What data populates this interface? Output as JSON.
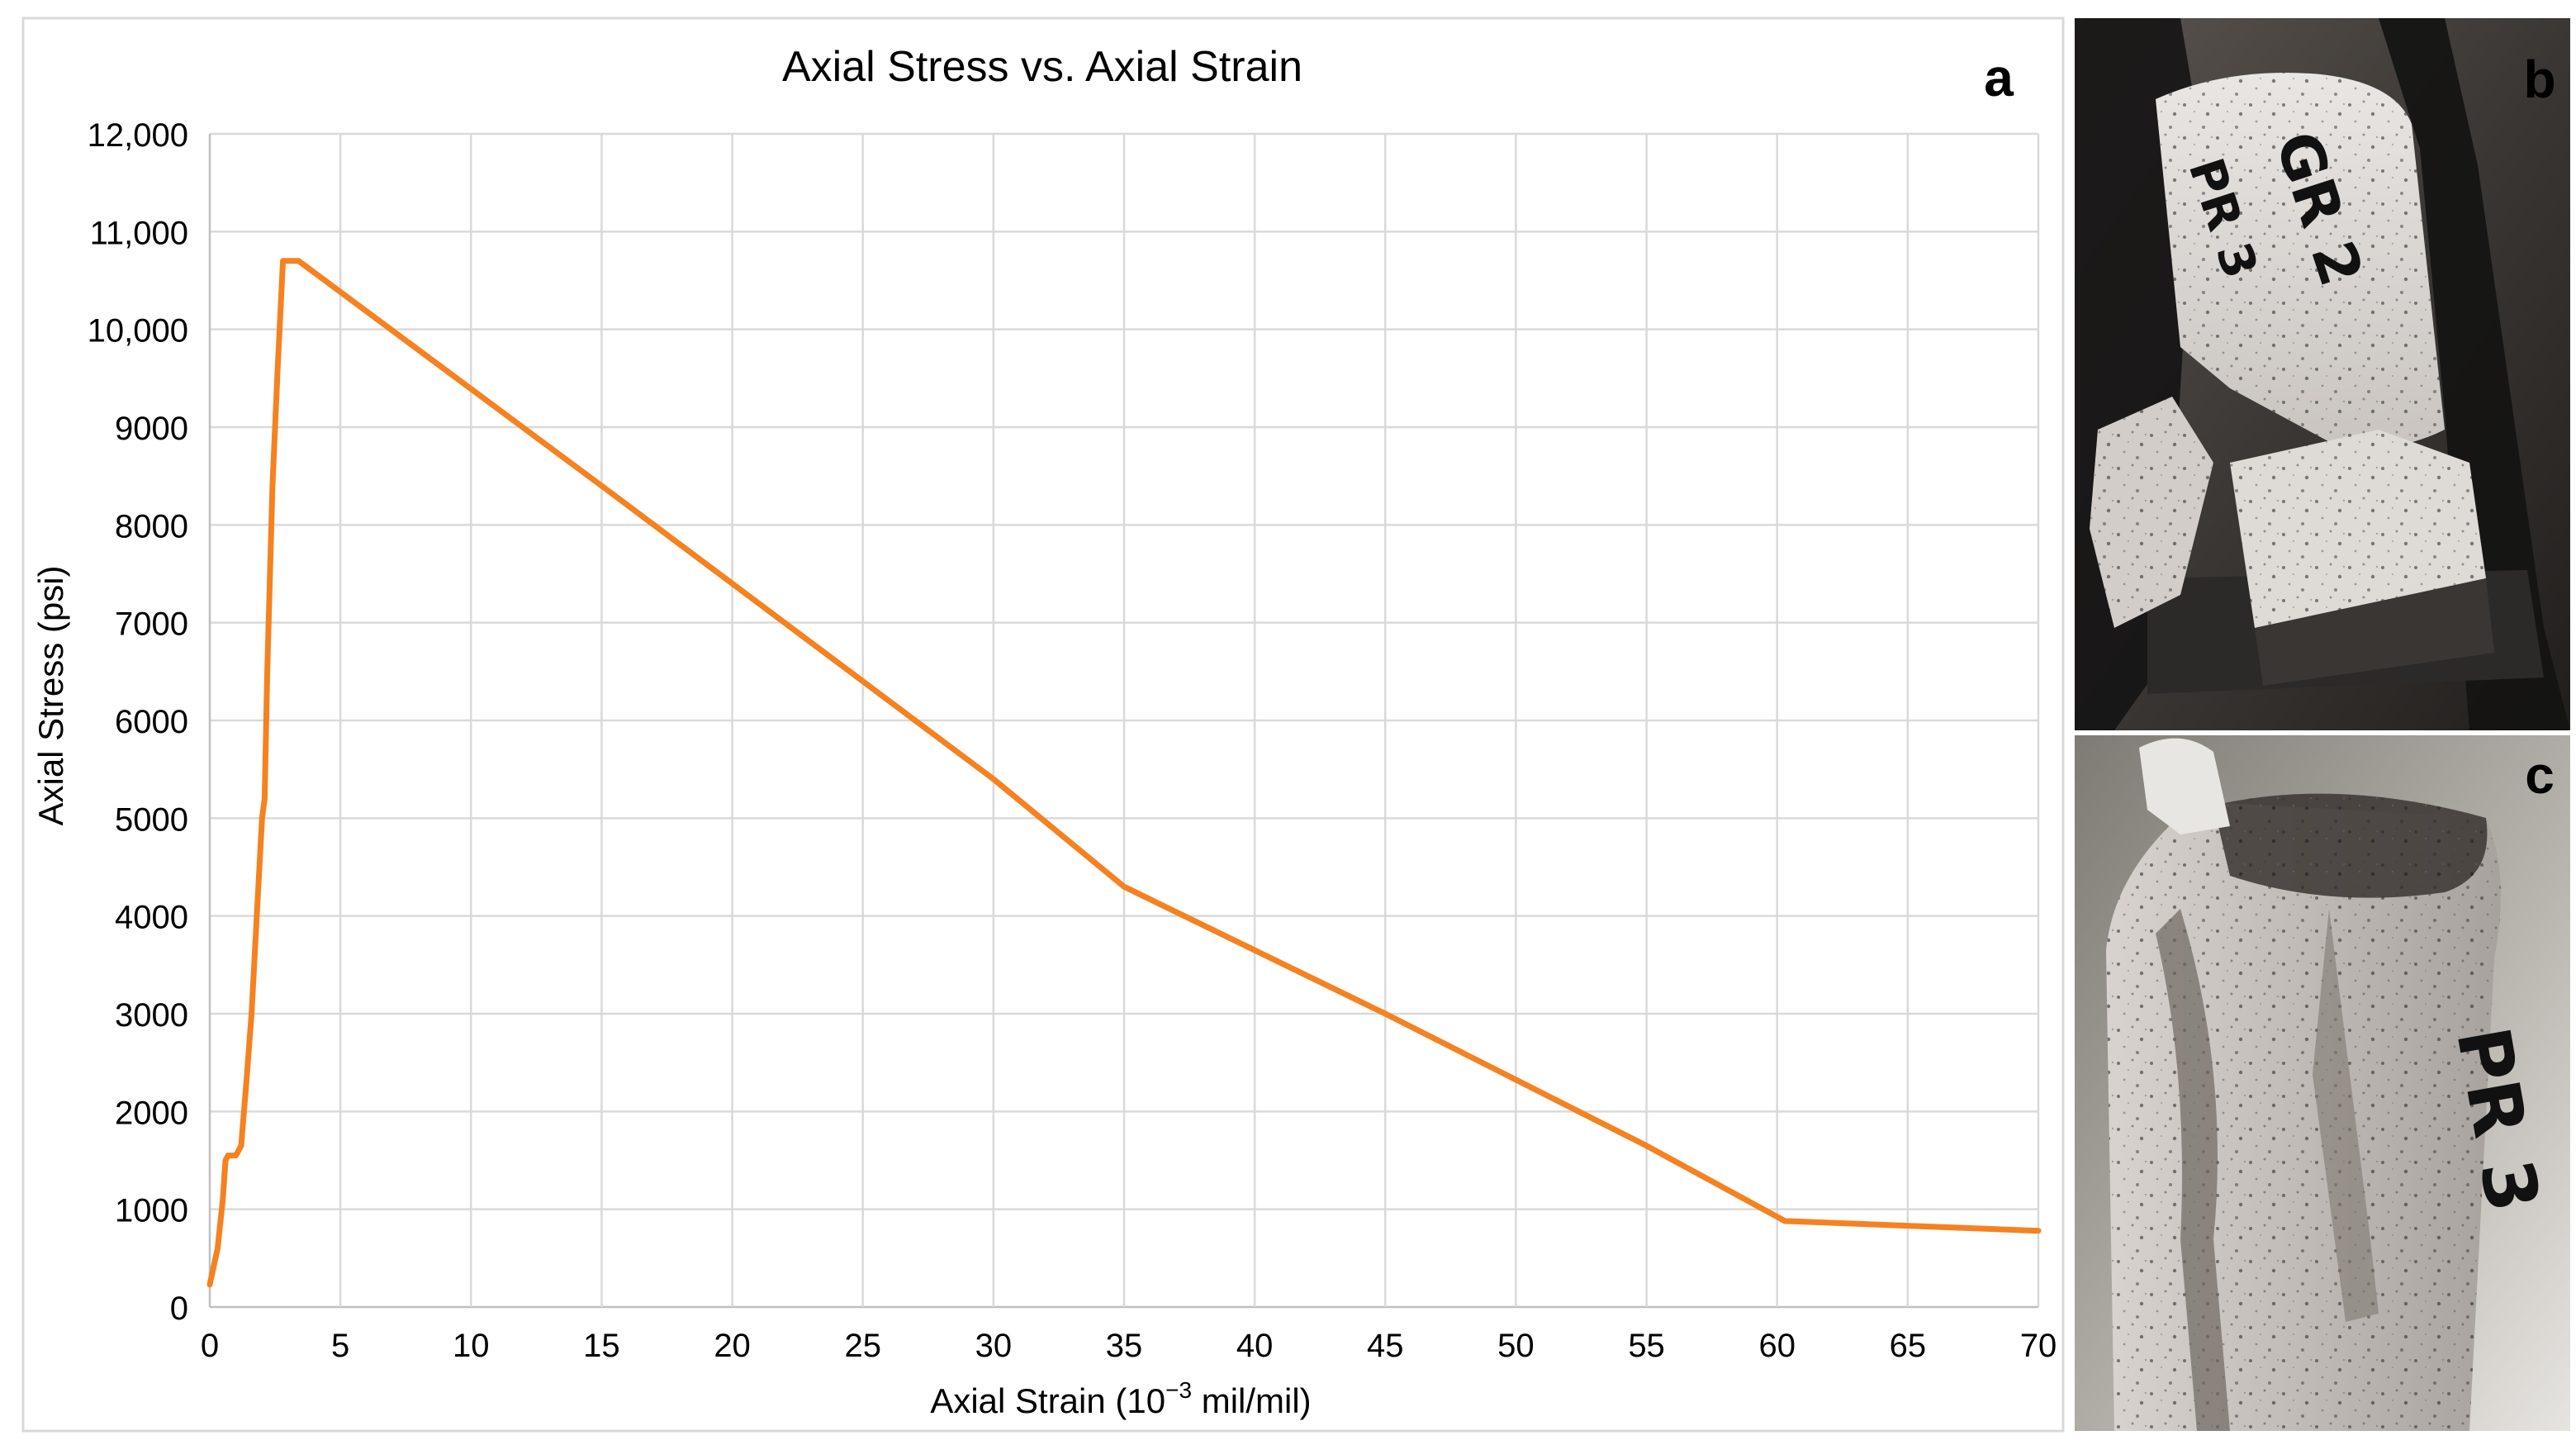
{
  "chart_data": {
    "type": "line",
    "title": "Axial Stress vs. Axial Strain",
    "xlabel": "Axial Strain (10",
    "xlabel_exp": "−3",
    "xlabel_tail": " mil/mil)",
    "ylabel": "Axial Stress (psi)",
    "xlim": [
      0,
      70
    ],
    "ylim": [
      0,
      12000
    ],
    "x_ticks": [
      "0",
      "5",
      "10",
      "15",
      "20",
      "25",
      "30",
      "35",
      "40",
      "45",
      "50",
      "55",
      "60",
      "65",
      "70"
    ],
    "y_ticks": [
      "0",
      "1000",
      "2000",
      "3000",
      "4000",
      "5000",
      "6000",
      "7000",
      "8000",
      "9000",
      "10,000",
      "11,000",
      "12,000"
    ],
    "grid": true,
    "series": [
      {
        "color": "#F58220",
        "x": [
          0.0,
          0.3,
          0.5,
          0.6,
          0.7,
          1.0,
          1.2,
          1.4,
          1.6,
          1.8,
          2.0,
          2.1,
          2.2,
          2.4,
          2.6,
          2.8,
          3.0,
          3.4,
          15.0,
          30.0,
          35.0,
          45.0,
          55.0,
          60.3,
          70.0
        ],
        "y": [
          230,
          600,
          1100,
          1500,
          1550,
          1550,
          1650,
          2300,
          3000,
          4000,
          5000,
          5200,
          6500,
          8400,
          9600,
          10700,
          10700,
          10700,
          8400,
          5400,
          4300,
          3000,
          1650,
          880,
          780
        ]
      }
    ]
  },
  "panel_labels": {
    "a": "a",
    "b": "b",
    "c": "c"
  },
  "colors": {
    "line": "#F58220",
    "grid": "#D9D9D9",
    "axis": "#BFBFBF",
    "text": "#000000"
  },
  "photos": {
    "b_handwriting": [
      "GR 2",
      "PR 3"
    ],
    "c_handwriting": "PR 3"
  }
}
